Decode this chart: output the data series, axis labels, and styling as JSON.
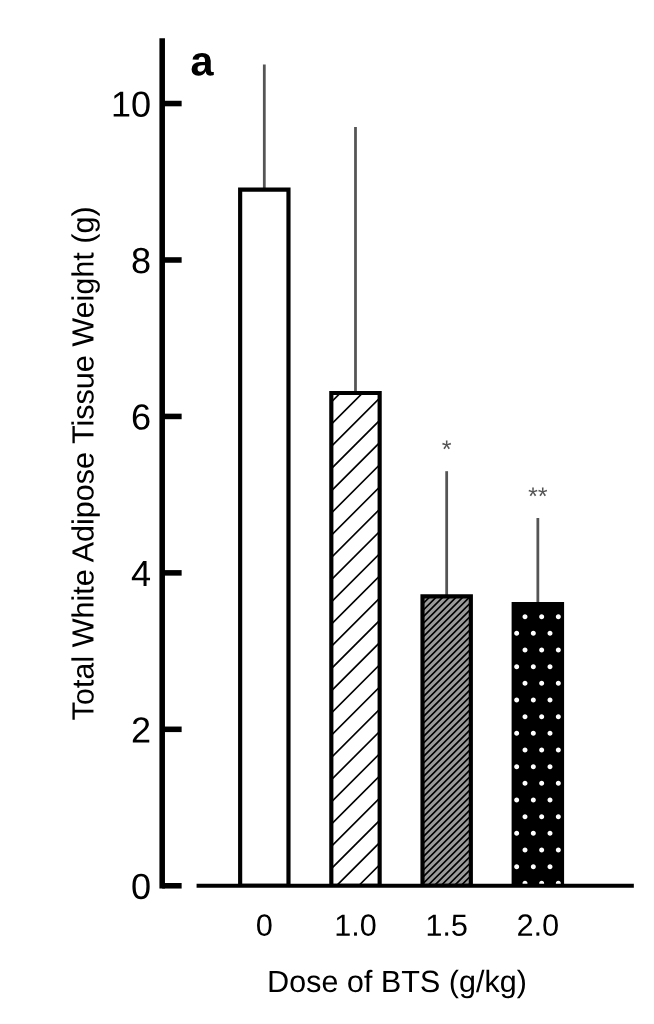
{
  "chart_data": {
    "type": "bar",
    "title": "a",
    "xlabel": "Dose of BTS (g/kg)",
    "ylabel": "Total White Adipose Tissue Weight (g)",
    "categories": [
      "0",
      "1.0",
      "1.5",
      "2.0"
    ],
    "values": [
      8.9,
      6.3,
      3.7,
      3.6
    ],
    "colors": [
      "#ffffff",
      "#ffffff",
      "#9a9a9a",
      "#000000"
    ],
    "errors": [
      [
        8.9,
        10.5
      ],
      [
        6.3,
        9.7
      ],
      [
        3.7,
        5.3
      ],
      [
        3.6,
        4.7
      ]
    ],
    "ylim": [
      0,
      10.8
    ],
    "yticks": [
      0,
      2,
      4,
      6,
      8,
      10
    ],
    "grid": false,
    "legend": false,
    "annotations": [
      {
        "text": "*",
        "x": "1.5",
        "y": 5.3
      },
      {
        "text": "**",
        "x": "2.0",
        "y": 4.7
      }
    ]
  }
}
